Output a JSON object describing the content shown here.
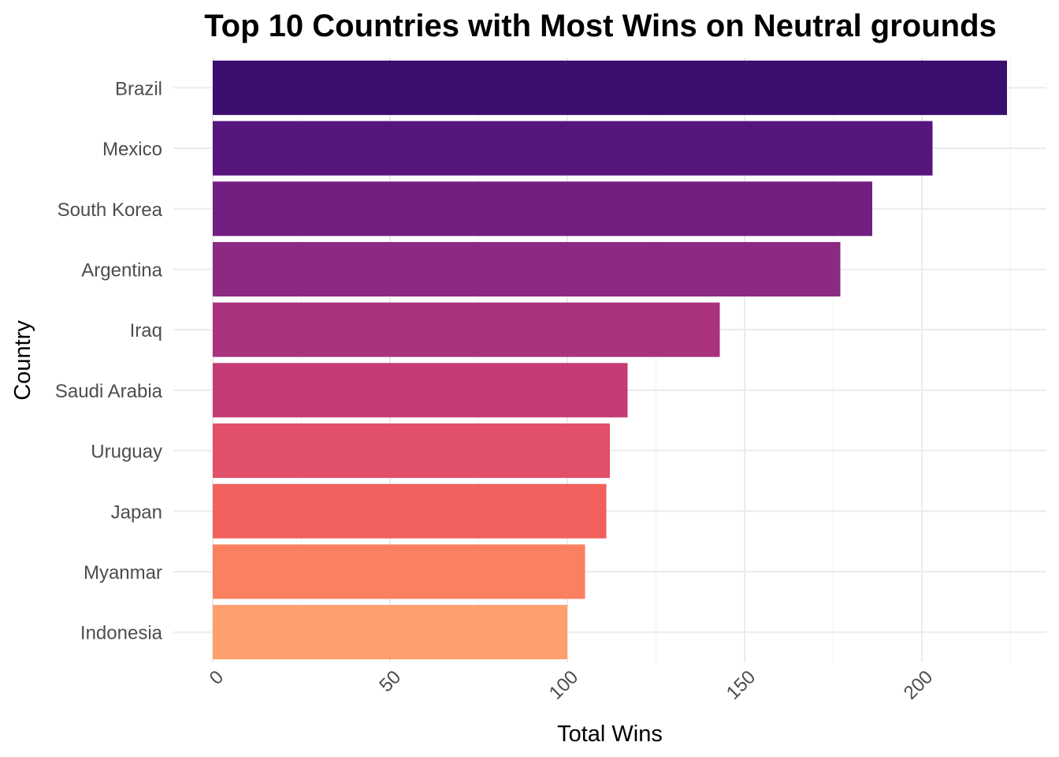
{
  "chart_data": {
    "type": "bar",
    "orientation": "horizontal",
    "title": "Top 10 Countries with Most Wins on Neutral grounds",
    "xlabel": "Total Wins",
    "ylabel": "Country",
    "categories": [
      "Brazil",
      "Mexico",
      "South Korea",
      "Argentina",
      "Iraq",
      "Saudi Arabia",
      "Uruguay",
      "Japan",
      "Myanmar",
      "Indonesia"
    ],
    "values": [
      224,
      203,
      186,
      177,
      143,
      117,
      112,
      111,
      105,
      100
    ],
    "colors": [
      "#3b0f6f",
      "#57157e",
      "#721f81",
      "#8c2981",
      "#a8327d",
      "#c43c75",
      "#e24f6a",
      "#f1605d",
      "#fa8060",
      "#fe9f6d"
    ],
    "xticks": [
      "0",
      "50",
      "100",
      "150",
      "200"
    ],
    "xlim": [
      0,
      224
    ],
    "grid": true,
    "legend": "none"
  }
}
